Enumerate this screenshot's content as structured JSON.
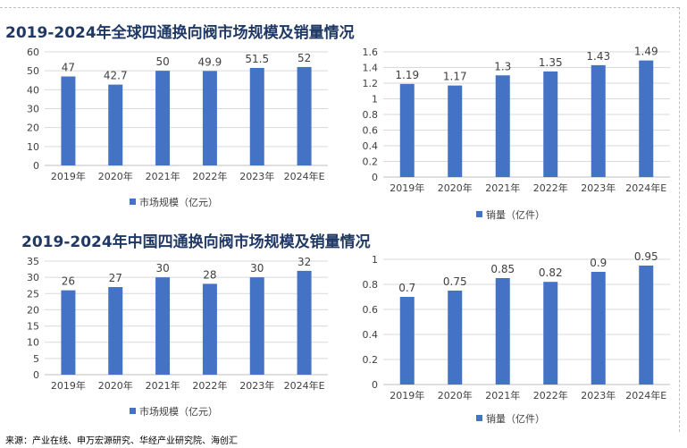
{
  "titles": {
    "global": "2019-2024年全球四通换向阀市场规模及销量情况",
    "china": "2019-2024年中国四通换向阀市场规模及销量情况"
  },
  "source": "来源：产业在线、申万宏源研究、华经产业研究院、海创汇",
  "colors": {
    "bar": "#4472c4",
    "grid": "#d9d9d9",
    "axis": "#bfbfbf",
    "text": "#404040",
    "title": "#1f3864"
  },
  "chart_data": [
    {
      "type": "bar",
      "categories": [
        "2019年",
        "2020年",
        "2021年",
        "2022年",
        "2023年",
        "2024年E"
      ],
      "series": [
        {
          "name": "市场规模（亿元）",
          "values": [
            47,
            42.7,
            50,
            49.9,
            51.5,
            52
          ]
        }
      ],
      "data_labels": [
        "47",
        "42.7",
        "50",
        "49.9",
        "51.5",
        "52"
      ],
      "ylim": [
        0,
        60
      ],
      "yticks": [
        0,
        10,
        20,
        30,
        40,
        50,
        60
      ],
      "ytick_labels": [
        "0",
        "10",
        "20",
        "30",
        "40",
        "50",
        "60"
      ],
      "grid": true,
      "legend": "bottom"
    },
    {
      "type": "bar",
      "categories": [
        "2019年",
        "2020年",
        "2021年",
        "2022年",
        "2023年",
        "2024年E"
      ],
      "series": [
        {
          "name": "销量（亿件）",
          "values": [
            1.19,
            1.17,
            1.3,
            1.35,
            1.43,
            1.49
          ]
        }
      ],
      "data_labels": [
        "1.19",
        "1.17",
        "1.3",
        "1.35",
        "1.43",
        "1.49"
      ],
      "ylim": [
        0,
        1.6
      ],
      "yticks": [
        0,
        0.2,
        0.4,
        0.6,
        0.8,
        1,
        1.2,
        1.4,
        1.6
      ],
      "ytick_labels": [
        "0",
        "0.2",
        "0.4",
        "0.6",
        "0.8",
        "1",
        "1.2",
        "1.4",
        "1.6"
      ],
      "grid": true,
      "legend": "bottom"
    },
    {
      "type": "bar",
      "categories": [
        "2019年",
        "2020年",
        "2021年",
        "2022年",
        "2023年",
        "2024年E"
      ],
      "series": [
        {
          "name": "市场规模（亿元）",
          "values": [
            26,
            27,
            30,
            28,
            30,
            32
          ]
        }
      ],
      "data_labels": [
        "26",
        "27",
        "30",
        "28",
        "30",
        "32"
      ],
      "ylim": [
        0,
        35
      ],
      "yticks": [
        0,
        5,
        10,
        15,
        20,
        25,
        30,
        35
      ],
      "ytick_labels": [
        "0",
        "5",
        "10",
        "15",
        "20",
        "25",
        "30",
        "35"
      ],
      "grid": true,
      "legend": "bottom"
    },
    {
      "type": "bar",
      "categories": [
        "2019年",
        "2020年",
        "2021年",
        "2022年",
        "2023年",
        "2024年E"
      ],
      "series": [
        {
          "name": "销量（亿件）",
          "values": [
            0.7,
            0.75,
            0.85,
            0.82,
            0.9,
            0.95
          ]
        }
      ],
      "data_labels": [
        "0.7",
        "0.75",
        "0.85",
        "0.82",
        "0.9",
        "0.95"
      ],
      "ylim": [
        0,
        1
      ],
      "yticks": [
        0,
        0.2,
        0.4,
        0.6,
        0.8,
        1
      ],
      "ytick_labels": [
        "0",
        "0.2",
        "0.4",
        "0.6",
        "0.8",
        "1"
      ],
      "grid": true,
      "legend": "bottom"
    }
  ]
}
